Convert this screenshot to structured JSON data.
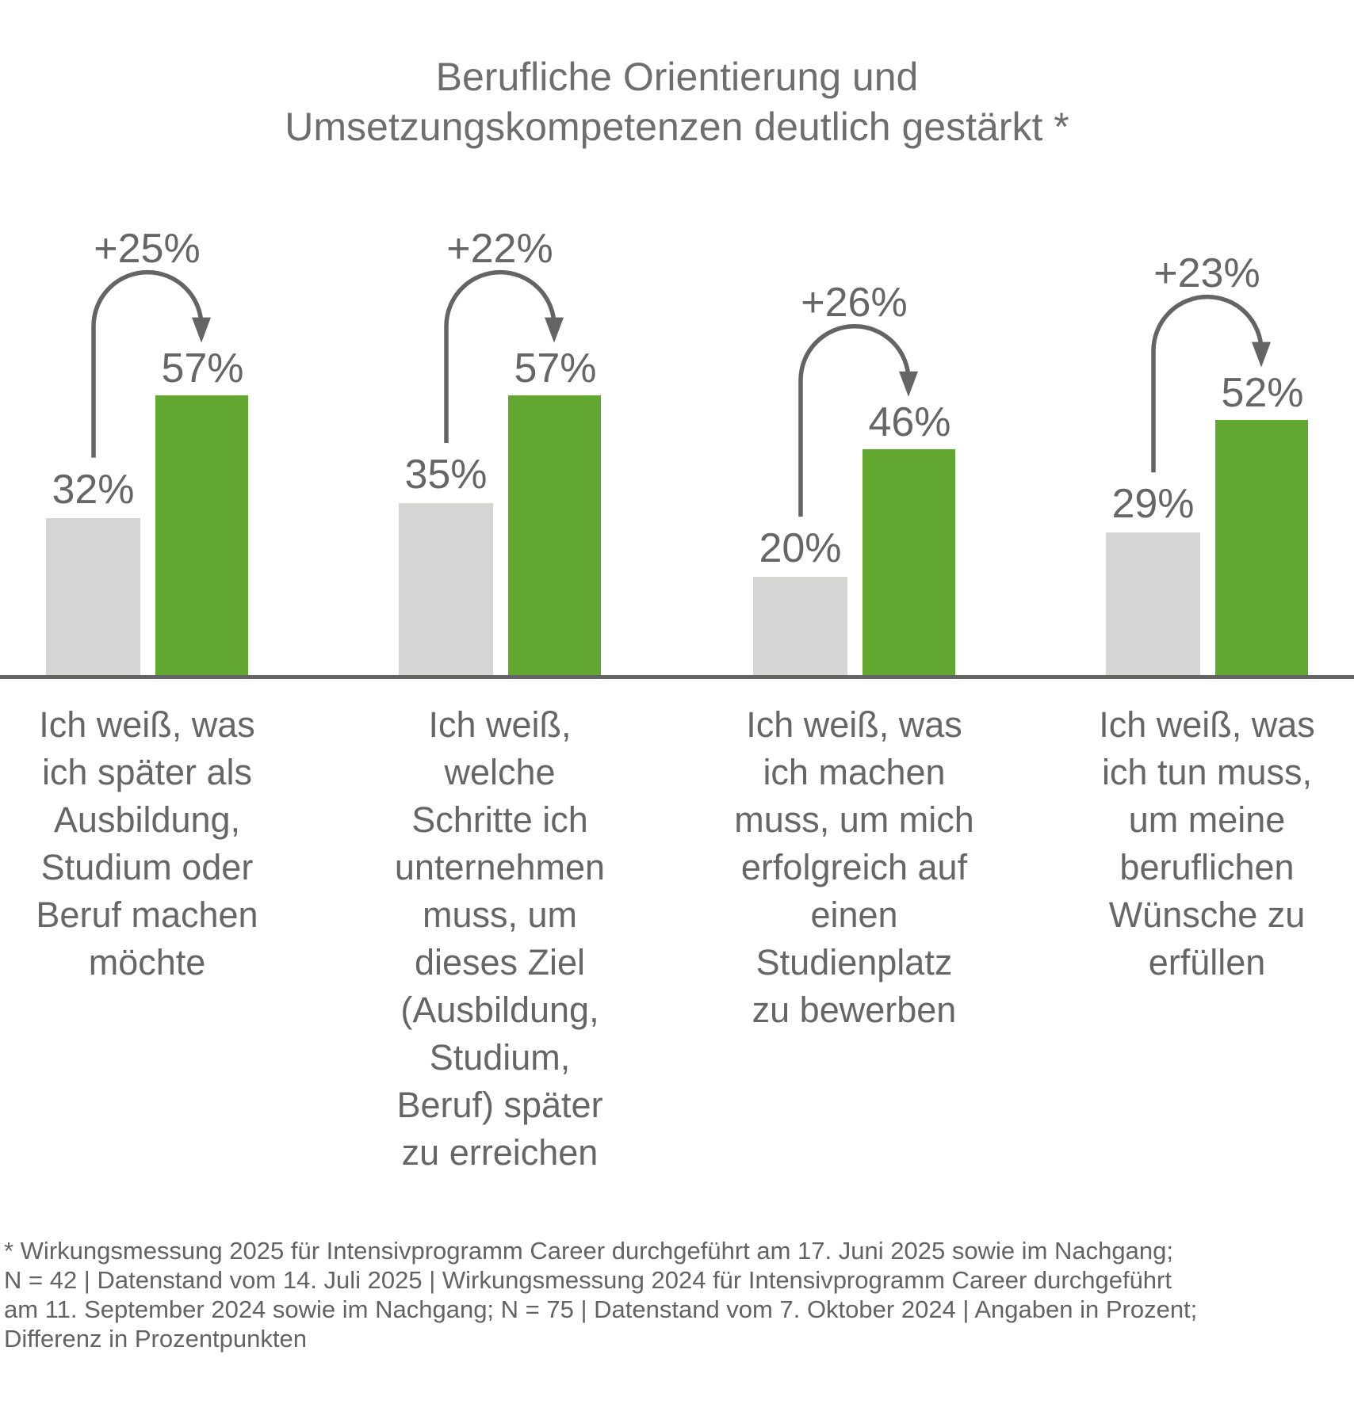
{
  "title": "Berufliche Orientierung und\nUmsetzungskompetenzen deutlich gestärkt *",
  "footnote": "* Wirkungsmessung 2025 für Intensivprogramm Career durchgeführt am 17. Juni 2025 sowie im Nachgang;\nN = 42 | Datenstand vom 14. Juli 2025 | Wirkungsmessung 2024 für Intensivprogramm Career durchgeführt\nam 11. September 2024 sowie im Nachgang; N = 75 | Datenstand vom 7. Oktober 2024 | Angaben in Prozent;\nDifferenz in Prozentpunkten",
  "colors": {
    "bar_before": "#D5D5D3",
    "bar_after": "#61A730",
    "axis": "#646464",
    "arrow": "#646464",
    "text": "#666666"
  },
  "chart_data": {
    "type": "bar",
    "unit": "percent",
    "value_suffix": "%",
    "ylim": [
      0,
      60
    ],
    "legend": "none",
    "grid": false,
    "groups": [
      {
        "category": "Ich weiß, was\nich später als\nAusbildung,\nStudium oder\nBeruf machen\nmöchte",
        "before": 32,
        "after": 57,
        "delta_label": "+25%"
      },
      {
        "category": "Ich weiß,\nwelche\nSchritte ich\nunternehmen\nmuss, um\ndieses Ziel\n(Ausbildung,\nStudium,\nBeruf) später\nzu erreichen",
        "before": 35,
        "after": 57,
        "delta_label": "+22%"
      },
      {
        "category": "Ich weiß, was\nich machen\nmuss, um mich\nerfolgreich auf\neinen\nStudienplatz\nzu bewerben",
        "before": 20,
        "after": 46,
        "delta_label": "+26%"
      },
      {
        "category": "Ich weiß, was\nich tun muss,\num meine\nberuflichen\nWünsche zu\nerfüllen",
        "before": 29,
        "after": 52,
        "delta_label": "+23%"
      }
    ]
  }
}
